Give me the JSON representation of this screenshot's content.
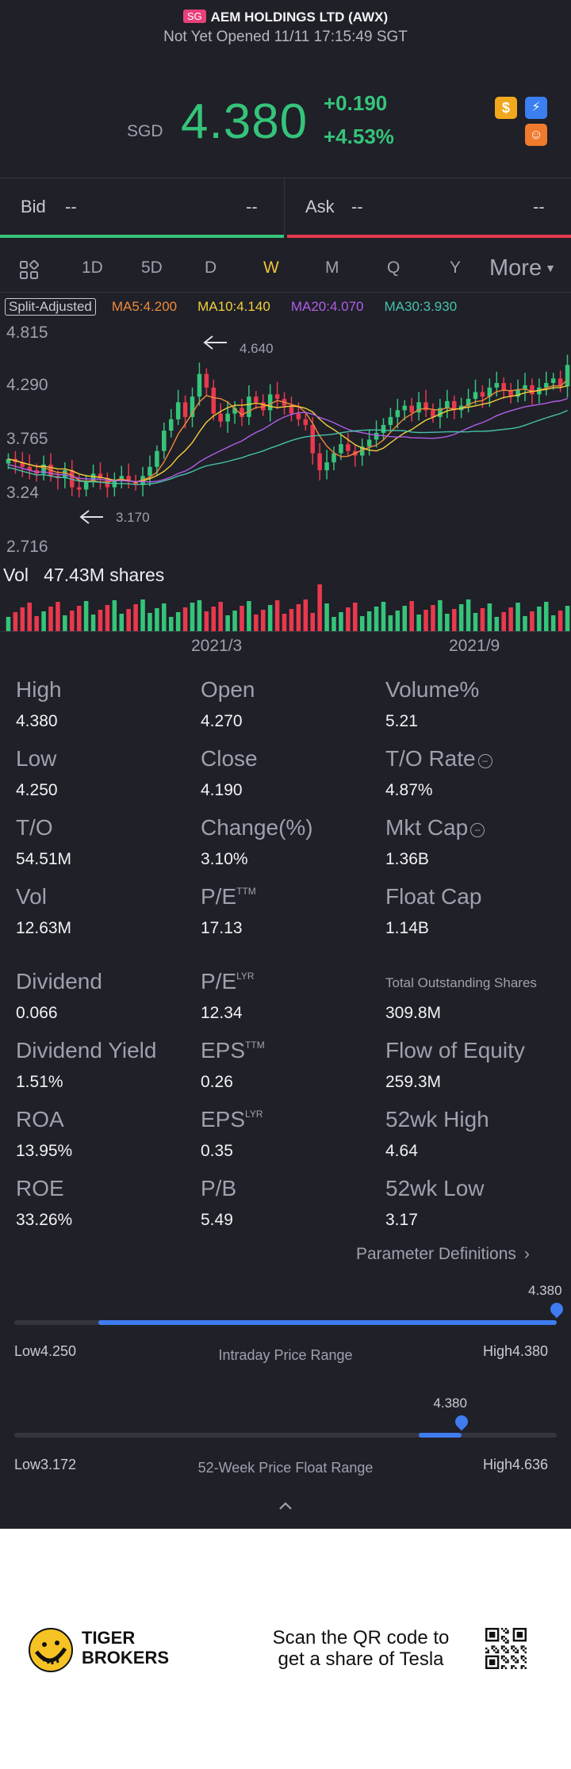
{
  "header": {
    "exchange_badge": "SG",
    "title": "AEM HOLDINGS LTD (AWX)",
    "status": "Not Yet Opened 11/11 17:15:49 SGT"
  },
  "quote": {
    "currency": "SGD",
    "price": "4.380",
    "change": "+0.190",
    "change_pct": "+4.53%",
    "icons": [
      {
        "name": "dollar-icon",
        "glyph": "$",
        "color": "#f2a81d"
      },
      {
        "name": "flash-icon",
        "glyph": "⚡",
        "color": "#3b7ef0"
      },
      {
        "name": "tiger-icon",
        "glyph": "☺",
        "color": "#f07a2d"
      }
    ]
  },
  "bidask": {
    "bid_label": "Bid",
    "bid_price": "--",
    "bid_size": "--",
    "ask_label": "Ask",
    "ask_price": "--",
    "ask_size": "--"
  },
  "tabs": {
    "items": [
      "1D",
      "5D",
      "D",
      "W",
      "M",
      "Q",
      "Y"
    ],
    "active": "W",
    "more": "More"
  },
  "ma": {
    "split": "Split-Adjusted",
    "ma5": "MA5:4.200",
    "ma10": "MA10:4.140",
    "ma20": "MA20:4.070",
    "ma30": "MA30:3.930",
    "colors": {
      "ma5": "#ee8a3a",
      "ma10": "#f3cf3b",
      "ma20": "#b15ee8",
      "ma30": "#45c2a8"
    }
  },
  "chart": {
    "y_labels": [
      "4.815",
      "4.290",
      "3.765",
      "3.24",
      "2.716"
    ],
    "high_mark": "4.640",
    "low_mark": "3.170",
    "vol_label": "Vol",
    "vol_value": "47.43M shares",
    "dates": [
      "2021/3",
      "2021/9"
    ],
    "up_color": "#35c47a",
    "down_color": "#e8394d"
  },
  "stats": {
    "high_label": "High",
    "high": "4.380",
    "open_label": "Open",
    "open": "4.270",
    "volpct_label": "Volume%",
    "volpct": "5.21",
    "low_label": "Low",
    "low": "4.250",
    "close_label": "Close",
    "close": "4.190",
    "torate_label": "T/O Rate",
    "torate": "4.87%",
    "to_label": "T/O",
    "to": "54.51M",
    "changepct_label": "Change(%)",
    "changepct": "3.10%",
    "mktcap_label": "Mkt Cap",
    "mktcap": "1.36B",
    "vol_label": "Vol",
    "vol": "12.63M",
    "pe_label": "P/E",
    "pe_sup": "TTM",
    "pe": "17.13",
    "floatcap_label": "Float Cap",
    "floatcap": "1.14B",
    "dividend_label": "Dividend",
    "dividend": "0.066",
    "pelyr_label": "P/E",
    "pelyr_sup": "LYR",
    "pelyr": "12.34",
    "tos_label": "Total Outstanding Shares",
    "tos": "309.8M",
    "divyield_label": "Dividend Yield",
    "divyield": "1.51%",
    "eps_label": "EPS",
    "eps_sup": "TTM",
    "eps": "0.26",
    "foe_label": "Flow of Equity",
    "foe": "259.3M",
    "roa_label": "ROA",
    "roa": "13.95%",
    "epslyr_label": "EPS",
    "epslyr_sup": "LYR",
    "epslyr": "0.35",
    "wk52high_label": "52wk High",
    "wk52high": "4.64",
    "roe_label": "ROE",
    "roe": "33.26%",
    "pb_label": "P/B",
    "pb": "5.49",
    "wk52low_label": "52wk Low",
    "wk52low": "3.17"
  },
  "param_link": "Parameter Definitions",
  "intraday": {
    "title": "Intraday Price Range",
    "low_text": "Low4.250",
    "high_text": "High4.380",
    "current": "4.380",
    "low": 4.25,
    "high": 4.38,
    "value": 4.38
  },
  "week52": {
    "title": "52-Week Price Float Range",
    "low_text": "Low3.172",
    "high_text": "High4.636",
    "current": "4.380",
    "low": 3.172,
    "high": 4.636,
    "value": 4.38
  },
  "footer": {
    "brand_line1": "TIGER",
    "brand_line2": "BROKERS",
    "scan_line1": "Scan the QR code to",
    "scan_line2": "get a share of Tesla"
  }
}
